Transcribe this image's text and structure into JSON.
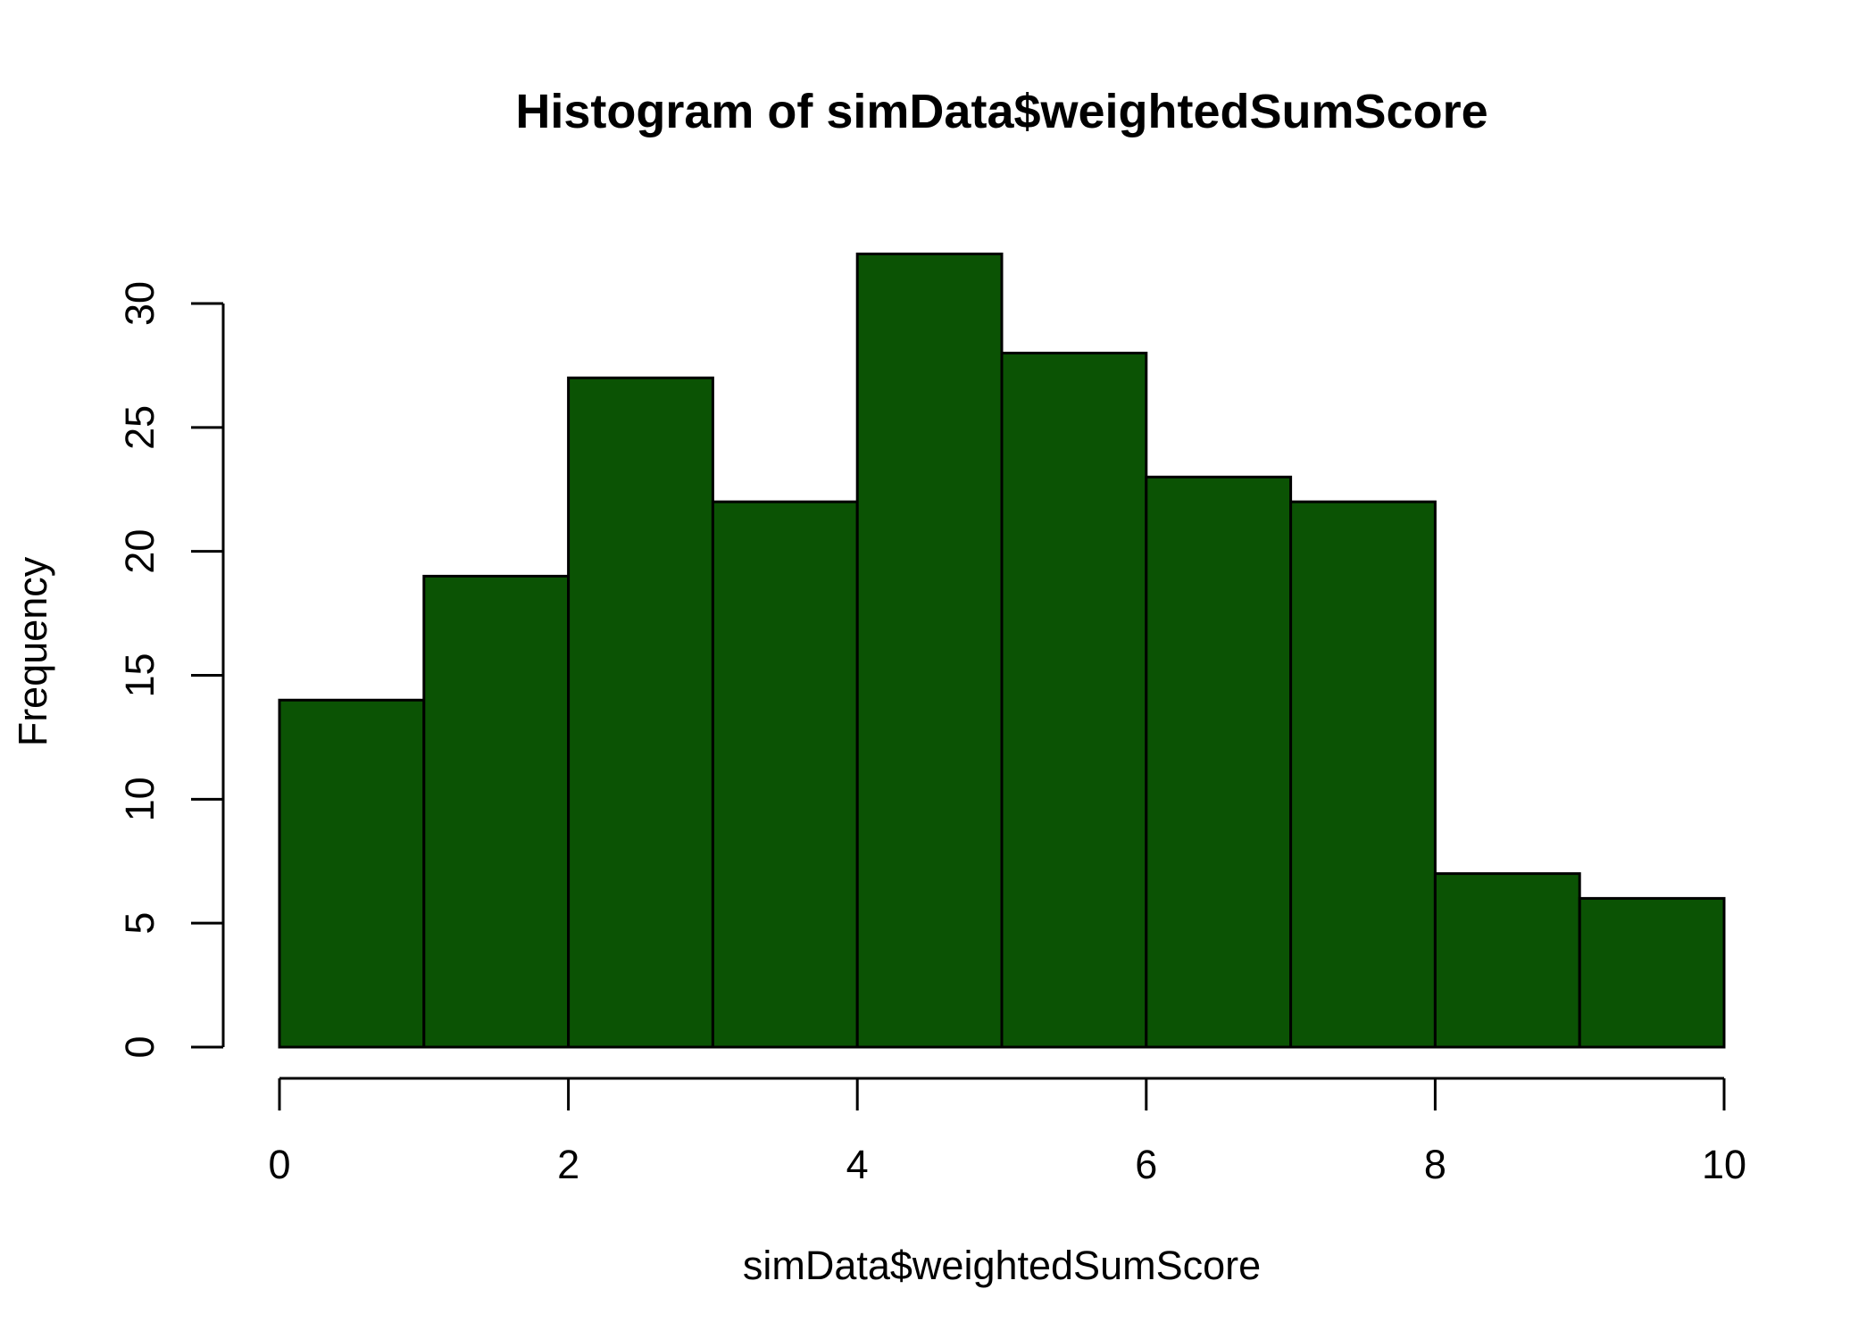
{
  "chart_data": {
    "type": "bar",
    "title": "Histogram of simData$weightedSumScore",
    "xlabel": "simData$weightedSumScore",
    "ylabel": "Frequency",
    "bins": [
      [
        0,
        1
      ],
      [
        1,
        2
      ],
      [
        2,
        3
      ],
      [
        3,
        4
      ],
      [
        4,
        5
      ],
      [
        5,
        6
      ],
      [
        6,
        7
      ],
      [
        7,
        8
      ],
      [
        8,
        9
      ],
      [
        9,
        10
      ]
    ],
    "values": [
      14,
      19,
      27,
      22,
      32,
      28,
      23,
      22,
      7,
      6
    ],
    "xlim": [
      0,
      10
    ],
    "ylim": [
      0,
      30
    ],
    "x_ticks": [
      0,
      2,
      4,
      6,
      8,
      10
    ],
    "y_ticks": [
      0,
      5,
      10,
      15,
      20,
      25,
      30
    ],
    "x_tick_labels": [
      "0",
      "2",
      "4",
      "6",
      "8",
      "10"
    ],
    "y_tick_labels": [
      "0",
      "5",
      "10",
      "15",
      "20",
      "25",
      "30"
    ],
    "grid": false,
    "colors": {
      "bar_fill": "#0b5304",
      "bar_stroke": "#000000"
    }
  }
}
